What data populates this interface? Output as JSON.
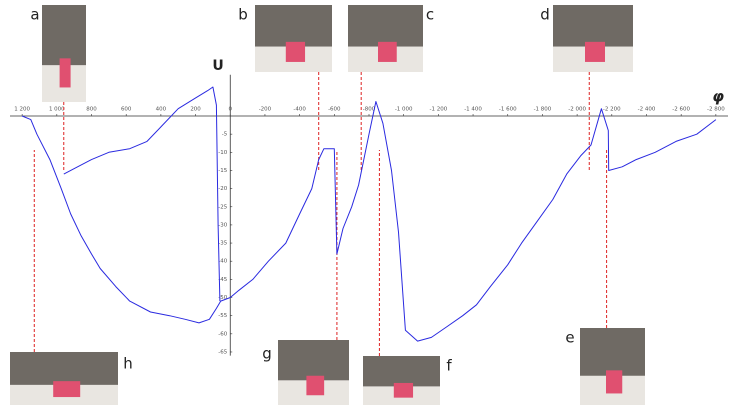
{
  "chart_data": {
    "type": "line",
    "y_label": "U",
    "x_label": "φ",
    "xlim": [
      1270,
      -2870
    ],
    "ylim": [
      -66,
      10
    ],
    "xticks": [
      {
        "value": 1200,
        "label": "1 200"
      },
      {
        "value": 1000,
        "label": "1 000"
      },
      800,
      600,
      400,
      200,
      0,
      -200,
      -400,
      -600,
      -800,
      {
        "value": -1000,
        "label": "-1 000"
      },
      {
        "value": -1200,
        "label": "-1 200"
      },
      {
        "value": -1400,
        "label": "-1 400"
      },
      {
        "value": -1600,
        "label": "-1 600"
      },
      {
        "value": -1800,
        "label": "-1 800"
      },
      {
        "value": -2000,
        "label": "-2 000"
      },
      {
        "value": -2200,
        "label": "-2 200"
      },
      {
        "value": -2400,
        "label": "-2 400"
      },
      {
        "value": -2600,
        "label": "-2 600"
      },
      {
        "value": -2800,
        "label": "-2 800"
      }
    ],
    "yticks": [
      -5,
      -10,
      -15,
      -20,
      -25,
      -30,
      -35,
      -40,
      -45,
      -50,
      -55,
      -60,
      -65
    ],
    "series": [
      {
        "color": "#2a2ae0",
        "x": [
          1200,
          1150,
          1115,
          1040,
          975,
          920,
          860,
          800,
          750,
          660,
          580,
          460,
          350,
          260,
          180,
          120,
          80,
          55,
          0,
          -50,
          -130,
          -220,
          -320,
          -400,
          -470,
          -510,
          -540,
          -600,
          -615,
          -650,
          -700,
          -740,
          -800,
          -840,
          -880,
          -930,
          -970,
          -1010,
          -1080,
          -1160,
          -1250,
          -1340,
          -1420,
          -1500,
          -1600,
          -1680,
          -1770,
          -1860,
          -1940,
          -2020,
          -2080,
          -2140,
          -2180,
          -2182,
          -2260,
          -2340,
          -2450,
          -2570,
          -2690,
          -2800
        ],
        "values": [
          0,
          -1,
          -5,
          -12,
          -20,
          -27,
          -33,
          -38,
          -42,
          -47,
          -51,
          -54,
          -55,
          -56,
          -57,
          -56,
          -53,
          -51,
          -50,
          -48,
          -45,
          -40,
          -35,
          -27,
          -20,
          -12,
          -9,
          -9,
          -38,
          -31,
          -25,
          -19,
          -5,
          4,
          -2,
          -15,
          -32,
          -59,
          -62,
          -61,
          -58,
          -55,
          -52,
          -47,
          -41,
          -35,
          -29,
          -23,
          -16,
          -11,
          -8,
          2,
          -4,
          -15,
          -14,
          -12,
          -10,
          -7,
          -5,
          -1
        ]
      },
      {
        "color": "#2a2ae0",
        "x": [
          960,
          880,
          800,
          700,
          580,
          480,
          400,
          300,
          200,
          130,
          100,
          80,
          70,
          60
        ],
        "values": [
          -16,
          -14,
          -12,
          -10,
          -9,
          -7,
          -3,
          2,
          5,
          7,
          8,
          3,
          -30,
          -51
        ]
      }
    ],
    "annotations": [
      {
        "label": "a",
        "x": 960
      },
      {
        "label": "b",
        "x": -510
      },
      {
        "label": "c",
        "x": -755
      },
      {
        "label": "d",
        "x": -2070
      },
      {
        "label": "e",
        "x": -2170
      },
      {
        "label": "f",
        "x": -860
      },
      {
        "label": "g",
        "x": -615
      },
      {
        "label": "h",
        "x": 1130
      }
    ]
  }
}
